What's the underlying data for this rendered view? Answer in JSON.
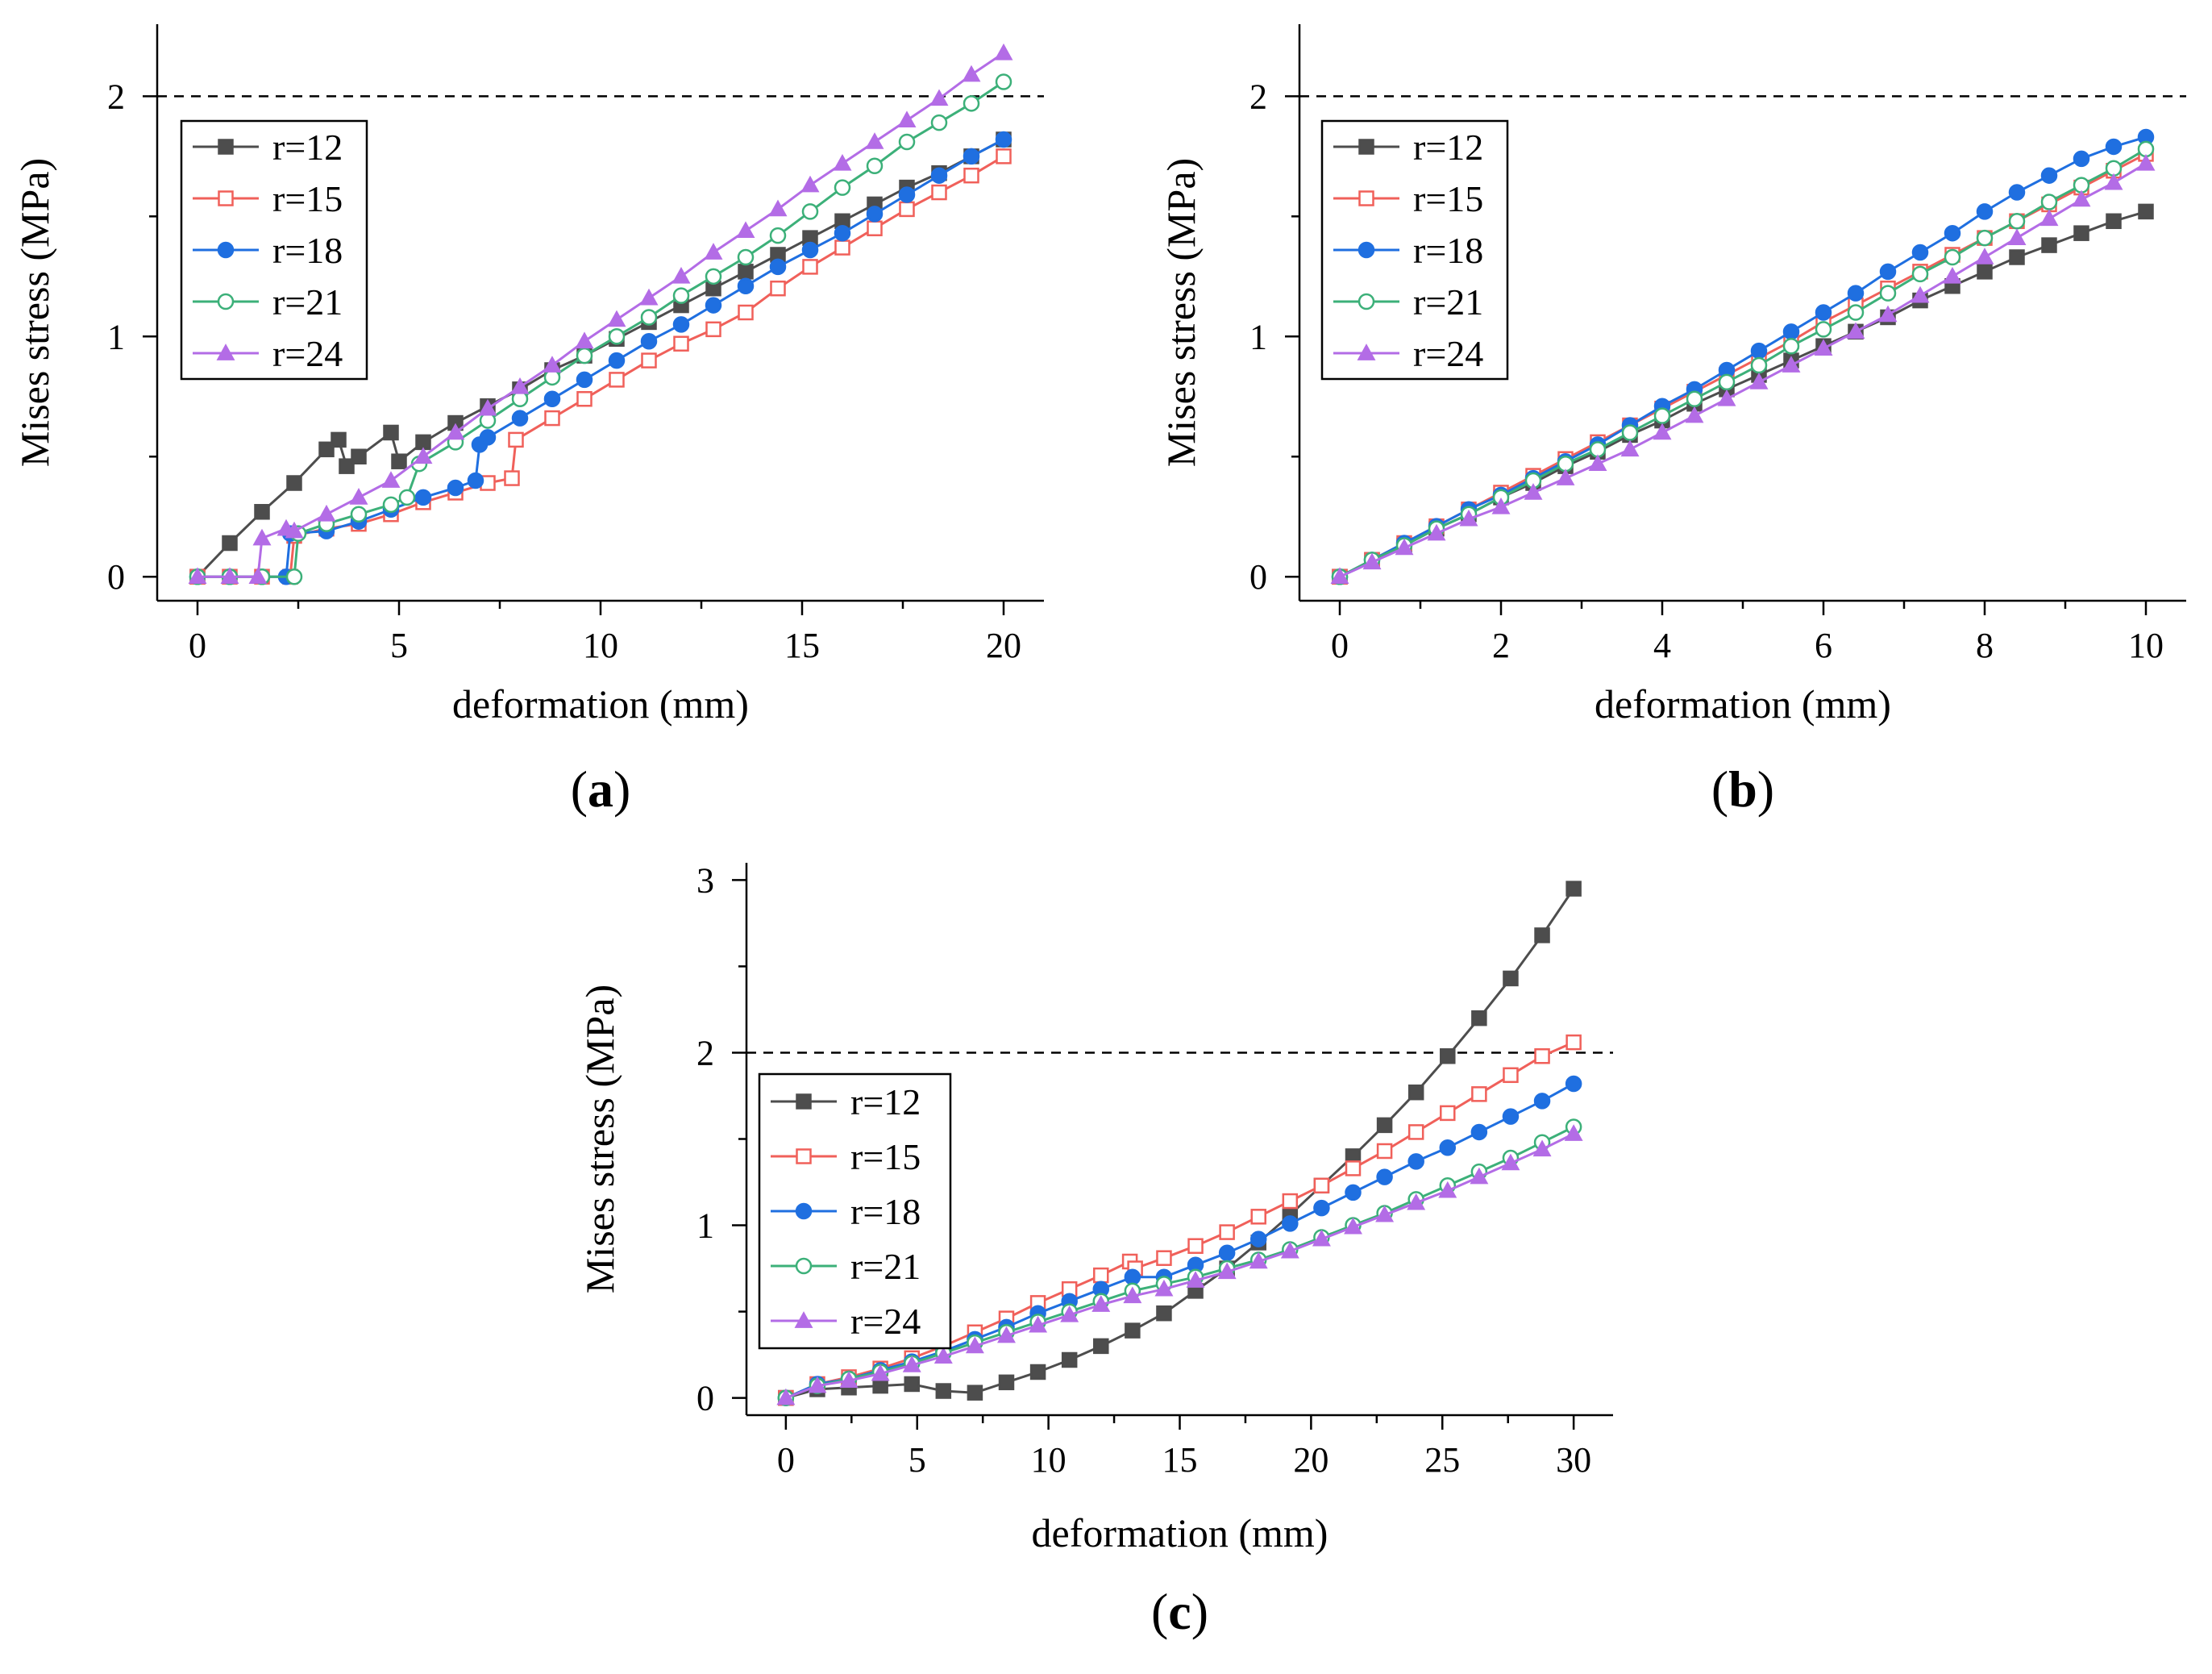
{
  "figure": {
    "colors": {
      "r=12": "#4d4d4d",
      "r=15": "#f0605a",
      "r=18": "#1f6fe0",
      "r=21": "#3cb079",
      "r=24": "#b36ce6"
    },
    "markers": {
      "r=12": "square-filled",
      "r=15": "square-open",
      "r=18": "circle-filled",
      "r=21": "circle-open",
      "r=24": "triangle-filled"
    }
  },
  "chart_data": [
    {
      "id": "a",
      "type": "line",
      "panel_label_open": "(",
      "panel_label_letter": "a",
      "panel_label_close": ")",
      "xlabel": "deformation (mm)",
      "ylabel": "Mises stress (MPa)",
      "xlim": [
        -1,
        21
      ],
      "ylim": [
        -0.1,
        2.3
      ],
      "xticks": [
        0,
        5,
        10,
        15,
        20
      ],
      "yticks": [
        0,
        1,
        2
      ],
      "reference_line": {
        "y": 2,
        "style": "dashed"
      },
      "legend_position": "upper-left",
      "series": [
        {
          "name": "r=12",
          "x": [
            0,
            0.8,
            1.6,
            2.4,
            3.2,
            3.5,
            3.7,
            4,
            4.8,
            5,
            5.6,
            6.4,
            7.2,
            8,
            8.8,
            9.6,
            10.4,
            11.2,
            12,
            12.8,
            13.6,
            14.4,
            15.2,
            16,
            16.8,
            17.6,
            18.4,
            19.2,
            20
          ],
          "y": [
            0,
            0.14,
            0.27,
            0.39,
            0.53,
            0.57,
            0.46,
            0.5,
            0.6,
            0.48,
            0.56,
            0.64,
            0.71,
            0.78,
            0.86,
            0.92,
            0.99,
            1.06,
            1.13,
            1.2,
            1.27,
            1.34,
            1.41,
            1.48,
            1.55,
            1.62,
            1.68,
            1.75,
            1.82
          ]
        },
        {
          "name": "r=15",
          "x": [
            0,
            0.8,
            1.6,
            2.3,
            2.4,
            3.2,
            4,
            4.8,
            5.6,
            6.4,
            7.2,
            7.8,
            7.9,
            8.8,
            9.6,
            10.4,
            11.2,
            12,
            12.8,
            13.6,
            14.4,
            15.2,
            16,
            16.8,
            17.6,
            18.4,
            19.2,
            20
          ],
          "y": [
            0,
            0,
            0,
            0,
            0.17,
            0.2,
            0.22,
            0.26,
            0.31,
            0.35,
            0.39,
            0.41,
            0.57,
            0.66,
            0.74,
            0.82,
            0.9,
            0.97,
            1.03,
            1.1,
            1.2,
            1.29,
            1.37,
            1.45,
            1.53,
            1.6,
            1.67,
            1.75
          ]
        },
        {
          "name": "r=18",
          "x": [
            0,
            0.8,
            1.6,
            2.2,
            2.3,
            3.2,
            4,
            4.8,
            5.6,
            6.4,
            6.9,
            7,
            7.2,
            8,
            8.8,
            9.6,
            10.4,
            11.2,
            12,
            12.8,
            13.6,
            14.4,
            15.2,
            16,
            16.8,
            17.6,
            18.4,
            19.2,
            20
          ],
          "y": [
            0,
            0,
            0,
            0,
            0.18,
            0.19,
            0.23,
            0.28,
            0.33,
            0.37,
            0.4,
            0.55,
            0.58,
            0.66,
            0.74,
            0.82,
            0.9,
            0.98,
            1.05,
            1.13,
            1.21,
            1.29,
            1.36,
            1.43,
            1.51,
            1.59,
            1.67,
            1.75,
            1.82
          ]
        },
        {
          "name": "r=21",
          "x": [
            0,
            0.8,
            1.6,
            2.4,
            2.5,
            3.2,
            4,
            4.8,
            5.2,
            5.5,
            6.4,
            7.2,
            8,
            8.8,
            9.6,
            10.4,
            11.2,
            12,
            12.8,
            13.6,
            14.4,
            15.2,
            16,
            16.8,
            17.6,
            18.4,
            19.2,
            20
          ],
          "y": [
            0,
            0,
            0,
            0,
            0.18,
            0.22,
            0.26,
            0.3,
            0.33,
            0.47,
            0.56,
            0.65,
            0.74,
            0.83,
            0.92,
            1.0,
            1.08,
            1.17,
            1.25,
            1.33,
            1.42,
            1.52,
            1.62,
            1.71,
            1.81,
            1.89,
            1.97,
            2.06
          ]
        },
        {
          "name": "r=24",
          "x": [
            0,
            0.8,
            1.5,
            1.6,
            2.2,
            2.4,
            3.2,
            4,
            4.8,
            5.6,
            6.4,
            7.2,
            8,
            8.8,
            9.6,
            10.4,
            11.2,
            12,
            12.8,
            13.6,
            14.4,
            15.2,
            16,
            16.8,
            17.6,
            18.4,
            19.2,
            20
          ],
          "y": [
            0,
            0,
            0,
            0.16,
            0.2,
            0.19,
            0.26,
            0.33,
            0.4,
            0.5,
            0.6,
            0.7,
            0.79,
            0.88,
            0.98,
            1.07,
            1.16,
            1.25,
            1.35,
            1.44,
            1.53,
            1.63,
            1.72,
            1.81,
            1.9,
            1.99,
            2.09,
            2.18
          ]
        }
      ]
    },
    {
      "id": "b",
      "type": "line",
      "panel_label_open": "(",
      "panel_label_letter": "b",
      "panel_label_close": ")",
      "xlabel": "deformation (mm)",
      "ylabel": "Mises stress (MPa)",
      "xlim": [
        -0.5,
        10.5
      ],
      "ylim": [
        -0.1,
        2.3
      ],
      "xticks": [
        0,
        2,
        4,
        6,
        8,
        10
      ],
      "yticks": [
        0,
        1,
        2
      ],
      "reference_line": {
        "y": 2,
        "style": "dashed"
      },
      "legend_position": "upper-left",
      "series": [
        {
          "name": "r=12",
          "x": [
            0,
            0.4,
            0.8,
            1.2,
            1.6,
            2,
            2.4,
            2.8,
            3.2,
            3.6,
            4,
            4.4,
            4.8,
            5.2,
            5.6,
            6,
            6.4,
            6.8,
            7.2,
            7.6,
            8,
            8.4,
            8.8,
            9.2,
            9.6,
            10
          ],
          "y": [
            0,
            0.07,
            0.13,
            0.2,
            0.26,
            0.33,
            0.39,
            0.46,
            0.52,
            0.59,
            0.65,
            0.72,
            0.78,
            0.84,
            0.9,
            0.96,
            1.02,
            1.08,
            1.15,
            1.21,
            1.27,
            1.33,
            1.38,
            1.43,
            1.48,
            1.52
          ]
        },
        {
          "name": "r=15",
          "x": [
            0,
            0.4,
            0.8,
            1.2,
            1.6,
            2,
            2.4,
            2.8,
            3.2,
            3.6,
            4,
            4.4,
            4.8,
            5.2,
            5.6,
            6,
            6.4,
            6.8,
            7.2,
            7.6,
            8,
            8.4,
            8.8,
            9.2,
            9.6,
            10
          ],
          "y": [
            0,
            0.07,
            0.14,
            0.21,
            0.28,
            0.35,
            0.42,
            0.49,
            0.56,
            0.63,
            0.7,
            0.77,
            0.84,
            0.91,
            0.98,
            1.06,
            1.13,
            1.2,
            1.27,
            1.34,
            1.41,
            1.48,
            1.55,
            1.62,
            1.69,
            1.76
          ]
        },
        {
          "name": "r=18",
          "x": [
            0,
            0.4,
            0.8,
            1.2,
            1.6,
            2,
            2.4,
            2.8,
            3.2,
            3.6,
            4,
            4.4,
            4.8,
            5.2,
            5.6,
            6,
            6.4,
            6.8,
            7.2,
            7.6,
            8,
            8.4,
            8.8,
            9.2,
            9.6,
            10
          ],
          "y": [
            0,
            0.07,
            0.14,
            0.21,
            0.28,
            0.34,
            0.41,
            0.48,
            0.55,
            0.63,
            0.71,
            0.78,
            0.86,
            0.94,
            1.02,
            1.1,
            1.18,
            1.27,
            1.35,
            1.43,
            1.52,
            1.6,
            1.67,
            1.74,
            1.79,
            1.83
          ]
        },
        {
          "name": "r=21",
          "x": [
            0,
            0.4,
            0.8,
            1.2,
            1.6,
            2,
            2.4,
            2.8,
            3.2,
            3.6,
            4,
            4.4,
            4.8,
            5.2,
            5.6,
            6,
            6.4,
            6.8,
            7.2,
            7.6,
            8,
            8.4,
            8.8,
            9.2,
            9.6,
            10
          ],
          "y": [
            0,
            0.07,
            0.13,
            0.2,
            0.26,
            0.33,
            0.4,
            0.47,
            0.53,
            0.6,
            0.67,
            0.74,
            0.81,
            0.88,
            0.96,
            1.03,
            1.1,
            1.18,
            1.26,
            1.33,
            1.41,
            1.48,
            1.56,
            1.63,
            1.7,
            1.78
          ]
        },
        {
          "name": "r=24",
          "x": [
            0,
            0.4,
            0.8,
            1.2,
            1.6,
            2,
            2.4,
            2.8,
            3.2,
            3.6,
            4,
            4.4,
            4.8,
            5.2,
            5.6,
            6,
            6.4,
            6.8,
            7.2,
            7.6,
            8,
            8.4,
            8.8,
            9.2,
            9.6,
            10
          ],
          "y": [
            0,
            0.06,
            0.12,
            0.18,
            0.24,
            0.29,
            0.35,
            0.41,
            0.47,
            0.53,
            0.6,
            0.67,
            0.74,
            0.81,
            0.88,
            0.95,
            1.02,
            1.09,
            1.17,
            1.25,
            1.33,
            1.41,
            1.49,
            1.57,
            1.64,
            1.72
          ]
        }
      ]
    },
    {
      "id": "c",
      "type": "line",
      "panel_label_open": "(",
      "panel_label_letter": "c",
      "panel_label_close": ")",
      "xlabel": "deformation (mm)",
      "ylabel": "Mises stress (MPa)",
      "xlim": [
        -1.5,
        31.5
      ],
      "ylim": [
        -0.1,
        3.1
      ],
      "xticks": [
        0,
        5,
        10,
        15,
        20,
        25,
        30
      ],
      "yticks": [
        0,
        1,
        2,
        3
      ],
      "reference_line": {
        "y": 2,
        "style": "dashed"
      },
      "legend_position": "left-middle",
      "series": [
        {
          "name": "r=12",
          "x": [
            0,
            1.2,
            2.4,
            3.6,
            4.8,
            6,
            7.2,
            8.4,
            9.6,
            10.8,
            12,
            13.2,
            14.4,
            15.6,
            16.8,
            18,
            19.2,
            20.4,
            21.6,
            22.8,
            24,
            25.2,
            26.4,
            27.6,
            28.8,
            30
          ],
          "y": [
            0,
            0.05,
            0.06,
            0.07,
            0.08,
            0.04,
            0.03,
            0.09,
            0.15,
            0.22,
            0.3,
            0.39,
            0.49,
            0.62,
            0.75,
            0.9,
            1.06,
            1.23,
            1.4,
            1.58,
            1.77,
            1.98,
            2.2,
            2.43,
            2.68,
            2.95
          ]
        },
        {
          "name": "r=15",
          "x": [
            0,
            1.2,
            2.4,
            3.6,
            4.8,
            6,
            7.2,
            8.4,
            9.6,
            10.8,
            12,
            13.1,
            13.3,
            14.4,
            15.6,
            16.8,
            18,
            19.2,
            20.4,
            21.6,
            22.8,
            24,
            25.2,
            26.4,
            27.6,
            28.8,
            30
          ],
          "y": [
            0,
            0.08,
            0.12,
            0.17,
            0.23,
            0.3,
            0.38,
            0.46,
            0.55,
            0.63,
            0.71,
            0.79,
            0.75,
            0.81,
            0.88,
            0.96,
            1.05,
            1.14,
            1.23,
            1.33,
            1.43,
            1.54,
            1.65,
            1.76,
            1.87,
            1.98,
            2.06
          ]
        },
        {
          "name": "r=18",
          "x": [
            0,
            1.2,
            2.4,
            3.6,
            4.8,
            6,
            7.2,
            8.4,
            9.6,
            10.8,
            12,
            13.2,
            14.4,
            15.6,
            16.8,
            18,
            19.2,
            20.4,
            21.6,
            22.8,
            24,
            25.2,
            26.4,
            27.6,
            28.8,
            30
          ],
          "y": [
            0,
            0.08,
            0.11,
            0.16,
            0.21,
            0.27,
            0.34,
            0.41,
            0.49,
            0.56,
            0.63,
            0.7,
            0.7,
            0.77,
            0.84,
            0.92,
            1.01,
            1.1,
            1.19,
            1.28,
            1.37,
            1.45,
            1.54,
            1.63,
            1.72,
            1.82
          ]
        },
        {
          "name": "r=21",
          "x": [
            0,
            1.2,
            2.4,
            3.6,
            4.8,
            6,
            7.2,
            8.4,
            9.6,
            10.8,
            12,
            13.2,
            14.4,
            15.6,
            16.8,
            18,
            19.2,
            20.4,
            21.6,
            22.8,
            24,
            25.2,
            26.4,
            27.6,
            28.8,
            30
          ],
          "y": [
            0,
            0.07,
            0.11,
            0.15,
            0.2,
            0.26,
            0.32,
            0.38,
            0.44,
            0.5,
            0.56,
            0.62,
            0.66,
            0.7,
            0.75,
            0.8,
            0.86,
            0.93,
            1.0,
            1.07,
            1.15,
            1.23,
            1.31,
            1.39,
            1.48,
            1.57
          ]
        },
        {
          "name": "r=24",
          "x": [
            0,
            1.2,
            2.4,
            3.6,
            4.8,
            6,
            7.2,
            8.4,
            9.6,
            10.8,
            12,
            13.2,
            14.4,
            15.6,
            16.8,
            18,
            19.2,
            20.4,
            21.6,
            22.8,
            24,
            25.2,
            26.4,
            27.6,
            28.8,
            30
          ],
          "y": [
            0,
            0.07,
            0.1,
            0.14,
            0.19,
            0.24,
            0.3,
            0.36,
            0.42,
            0.48,
            0.54,
            0.59,
            0.63,
            0.68,
            0.73,
            0.79,
            0.85,
            0.92,
            0.99,
            1.06,
            1.13,
            1.2,
            1.28,
            1.36,
            1.44,
            1.53
          ]
        }
      ]
    }
  ]
}
